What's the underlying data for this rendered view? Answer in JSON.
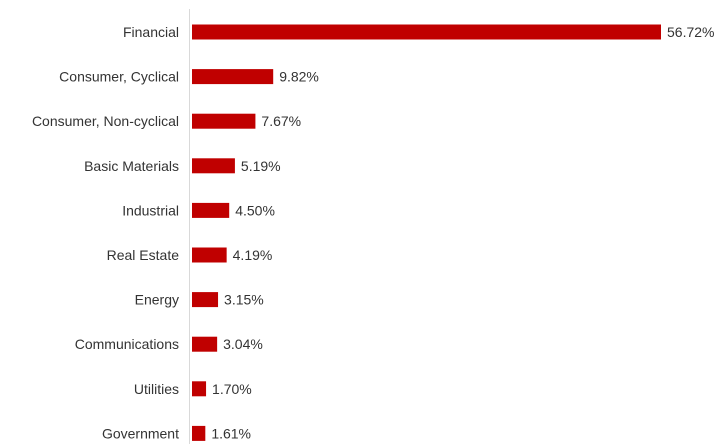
{
  "chart_data": {
    "type": "bar",
    "orientation": "horizontal",
    "title": "",
    "xlabel": "",
    "ylabel": "",
    "grid": false,
    "legend": "none",
    "categories": [
      "Financial",
      "Consumer, Cyclical",
      "Consumer, Non-cyclical",
      "Basic Materials",
      "Industrial",
      "Real Estate",
      "Energy",
      "Communications",
      "Utilities",
      "Government"
    ],
    "values": [
      56.72,
      9.82,
      7.67,
      5.19,
      4.5,
      4.19,
      3.15,
      3.04,
      1.7,
      1.61
    ],
    "value_labels": [
      "56.72%",
      "9.82%",
      "7.67%",
      "5.19%",
      "4.50%",
      "4.19%",
      "3.15%",
      "3.04%",
      "1.70%",
      "1.61%"
    ],
    "xlim": [
      0,
      56.72
    ],
    "bar_color": "#c00000"
  }
}
